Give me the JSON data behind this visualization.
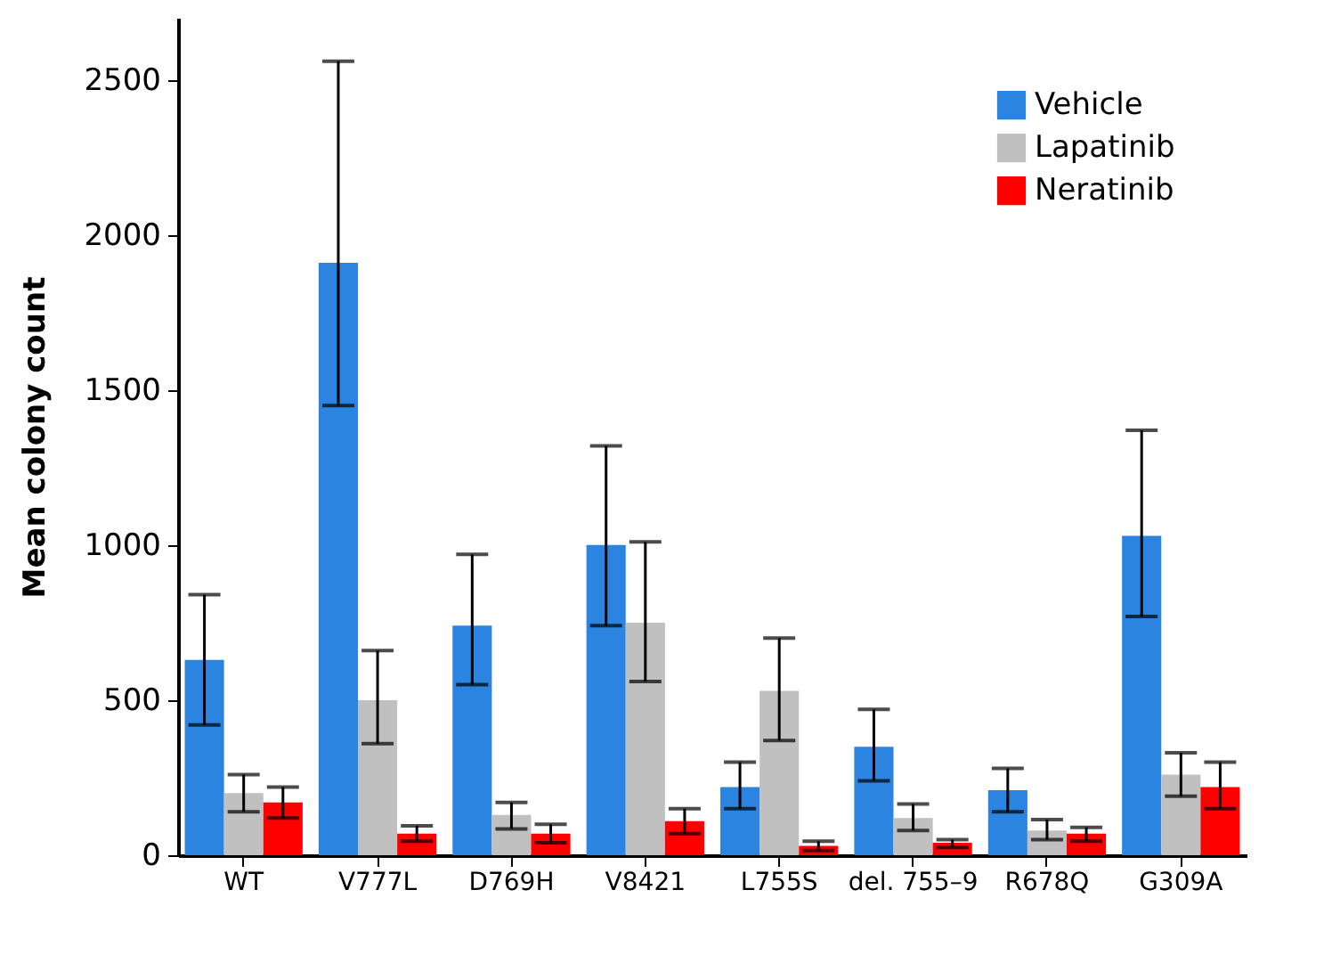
{
  "chart_data": {
    "type": "bar",
    "ylabel": "Mean colony count",
    "categories": [
      "WT",
      "V777L",
      "D769H",
      "V8421",
      "L755S",
      "del. 755–9",
      "R678Q",
      "G309A"
    ],
    "series": [
      {
        "name": "Vehicle",
        "color": "#2b85e0",
        "values": [
          630,
          1910,
          740,
          1000,
          220,
          350,
          210,
          1030
        ],
        "errors": [
          [
            420,
            840
          ],
          [
            1450,
            2560
          ],
          [
            550,
            970
          ],
          [
            740,
            1320
          ],
          [
            150,
            300
          ],
          [
            240,
            470
          ],
          [
            140,
            280
          ],
          [
            770,
            1370
          ]
        ]
      },
      {
        "name": "Lapatinib",
        "color": "#c0c0c0",
        "values": [
          200,
          500,
          130,
          750,
          530,
          120,
          80,
          260
        ],
        "errors": [
          [
            140,
            260
          ],
          [
            360,
            660
          ],
          [
            85,
            170
          ],
          [
            560,
            1010
          ],
          [
            370,
            700
          ],
          [
            80,
            165
          ],
          [
            50,
            115
          ],
          [
            190,
            330
          ]
        ]
      },
      {
        "name": "Neratinib",
        "color": "#ff0000",
        "values": [
          170,
          70,
          70,
          110,
          30,
          40,
          70,
          220
        ],
        "errors": [
          [
            120,
            220
          ],
          [
            45,
            95
          ],
          [
            40,
            100
          ],
          [
            70,
            150
          ],
          [
            15,
            45
          ],
          [
            25,
            50
          ],
          [
            45,
            90
          ],
          [
            150,
            300
          ]
        ]
      }
    ],
    "ylim": [
      0,
      2700
    ],
    "yticks": [
      0,
      500,
      1000,
      1500,
      2000,
      2500
    ],
    "grid": false,
    "legend": "top right"
  }
}
